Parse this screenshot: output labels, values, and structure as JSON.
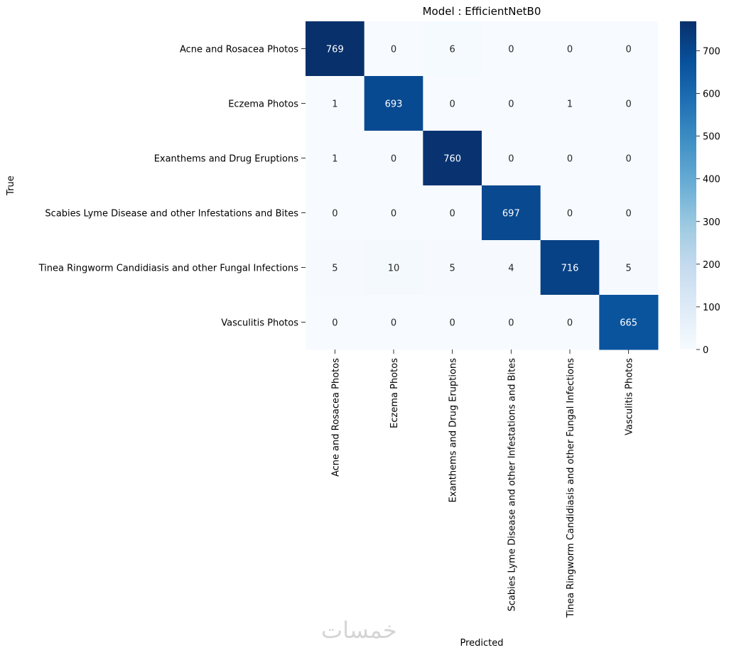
{
  "chart_data": {
    "type": "heatmap",
    "title": "Model : EfficientNetB0",
    "xlabel": "Predicted",
    "ylabel": "True",
    "row_labels": [
      "Acne and Rosacea Photos",
      "Eczema Photos",
      "Exanthems and Drug Eruptions",
      "Scabies Lyme Disease and other Infestations and Bites",
      "Tinea Ringworm Candidiasis and other Fungal Infections",
      "Vasculitis Photos"
    ],
    "col_labels": [
      "Acne and Rosacea Photos",
      "Eczema Photos",
      "Exanthems and Drug Eruptions",
      "Scabies Lyme Disease and other Infestations and Bites",
      "Tinea Ringworm Candidiasis and other Fungal Infections",
      "Vasculitis Photos"
    ],
    "values": [
      [
        769,
        0,
        6,
        0,
        0,
        0
      ],
      [
        1,
        693,
        0,
        0,
        1,
        0
      ],
      [
        1,
        0,
        760,
        0,
        0,
        0
      ],
      [
        0,
        0,
        0,
        697,
        0,
        0
      ],
      [
        5,
        10,
        5,
        4,
        716,
        5
      ],
      [
        0,
        0,
        0,
        0,
        0,
        665
      ]
    ],
    "colormap": "Blues",
    "colorbar": {
      "min": 0,
      "max": 769,
      "ticks": [
        0,
        100,
        200,
        300,
        400,
        500,
        600,
        700
      ]
    }
  },
  "watermark": "خمسات"
}
